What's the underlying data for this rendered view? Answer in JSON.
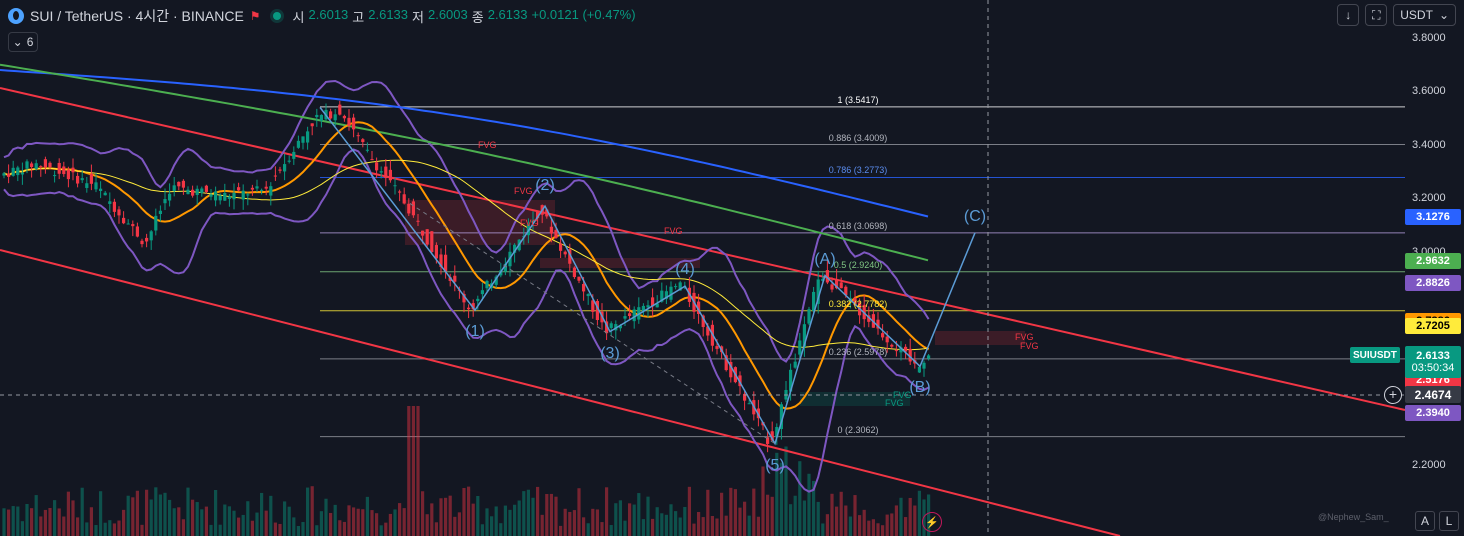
{
  "header": {
    "symbol_title": "SUI / TetherUS · 4시간 · BINANCE",
    "ohlc": [
      {
        "label": "시",
        "value": "2.6013"
      },
      {
        "label": "고",
        "value": "2.6133"
      },
      {
        "label": "저",
        "value": "2.6003"
      },
      {
        "label": "종",
        "value": "2.6133"
      }
    ],
    "change": "+0.0121 (+0.47%)",
    "indicator_count": "6",
    "currency": "USDT"
  },
  "icons": {
    "logo": "sui-logo-icon",
    "flag": "flag-icon",
    "live": "live-dot-icon",
    "chevron": "chevron-down-icon",
    "adjust": "arrow-down-icon",
    "fullscreen": "fullscreen-icon",
    "bolt": "lightning-icon"
  },
  "colors": {
    "background": "#131722",
    "up": "#089981",
    "down": "#f23645",
    "wave": "#5b9bd5",
    "bollinger": "#7e57c2",
    "ma_blue": "#2962ff",
    "ma_green": "#4caf50",
    "ma_orange": "#ff9800",
    "ma_yellow": "#ffeb3b"
  },
  "axis": {
    "ticks": [
      "3.8000",
      "3.6000",
      "3.4000",
      "3.2000",
      "3.0000",
      "2.4000",
      "2.2000"
    ]
  },
  "price_tags": [
    {
      "value": "3.1276",
      "bg": "#2962ff",
      "fg": "#ffffff"
    },
    {
      "value": "2.9632",
      "bg": "#4caf50",
      "fg": "#ffffff"
    },
    {
      "value": "2.8826",
      "bg": "#7e57c2",
      "fg": "#ffffff"
    },
    {
      "value": "2.7386",
      "bg": "#ff9800",
      "fg": "#000000"
    },
    {
      "value": "2.7205",
      "bg": "#ffeb3b",
      "fg": "#000000"
    },
    {
      "value": "2.5176",
      "bg": "#f23645",
      "fg": "#ffffff"
    },
    {
      "value": "2.3940",
      "bg": "#7e57c2",
      "fg": "#ffffff"
    }
  ],
  "last_price": {
    "symbol": "SUIUSDT",
    "value": "2.6133",
    "countdown": "03:50:34"
  },
  "crosshair_price": "2.4674",
  "fib_levels": [
    {
      "label": "1 (3.5417)",
      "color": "#ffffff"
    },
    {
      "label": "0.886 (3.4009)",
      "color": "#b2b5be"
    },
    {
      "label": "0.786 (3.2773)",
      "color": "#5b8def"
    },
    {
      "label": "0.618 (3.0698)",
      "color": "#b2b5be"
    },
    {
      "label": "0.5 (2.9240)",
      "color": "#81c784"
    },
    {
      "label": "0.382 (2.7782)",
      "color": "#ffeb3b"
    },
    {
      "label": "0.236 (2.5978)",
      "color": "#b2b5be"
    },
    {
      "label": "0 (2.3062)",
      "color": "#b2b5be"
    }
  ],
  "waves": [
    "(1)",
    "(2)",
    "(3)",
    "(4)",
    "(5)",
    "(A)",
    "(B)",
    "(C)"
  ],
  "fvg_label": "FVG",
  "watermark": "@Nephew_Sam_",
  "bottom": {
    "auto": "A",
    "log": "L"
  },
  "chart_data": {
    "type": "candlestick",
    "title": "SUI / TetherUS · 4시간 · BINANCE",
    "ylim": [
      2.06,
      3.86
    ],
    "y_ticks": [
      3.8,
      3.6,
      3.4,
      3.2,
      3.0,
      2.4,
      2.2
    ],
    "grid": false,
    "fib_retracement": [
      {
        "ratio": 1,
        "price": 3.5417
      },
      {
        "ratio": 0.886,
        "price": 3.4009
      },
      {
        "ratio": 0.786,
        "price": 3.2773
      },
      {
        "ratio": 0.618,
        "price": 3.0698
      },
      {
        "ratio": 0.5,
        "price": 2.924
      },
      {
        "ratio": 0.382,
        "price": 2.7782
      },
      {
        "ratio": 0.236,
        "price": 2.5978
      },
      {
        "ratio": 0,
        "price": 2.3062
      }
    ],
    "elliott_waves": [
      {
        "label": "(1)",
        "price": 2.78
      },
      {
        "label": "(2)",
        "price": 3.17
      },
      {
        "label": "(3)",
        "price": 2.7
      },
      {
        "label": "(4)",
        "price": 2.87
      },
      {
        "label": "(5)",
        "price": 2.28
      },
      {
        "label": "(A)",
        "price": 2.91
      },
      {
        "label": "(B)",
        "price": 2.57
      },
      {
        "label": "(C)",
        "price": 3.07
      }
    ],
    "last_close": 2.6133,
    "moving_averages": [
      {
        "color": "#2962ff",
        "last": 3.1276
      },
      {
        "color": "#4caf50",
        "last": 2.9632
      },
      {
        "color": "#ff9800",
        "last": 2.7386
      },
      {
        "color": "#ffeb3b",
        "last": 2.7205
      }
    ],
    "bollinger_last": {
      "upper": 2.8826,
      "lower": 2.394
    }
  }
}
